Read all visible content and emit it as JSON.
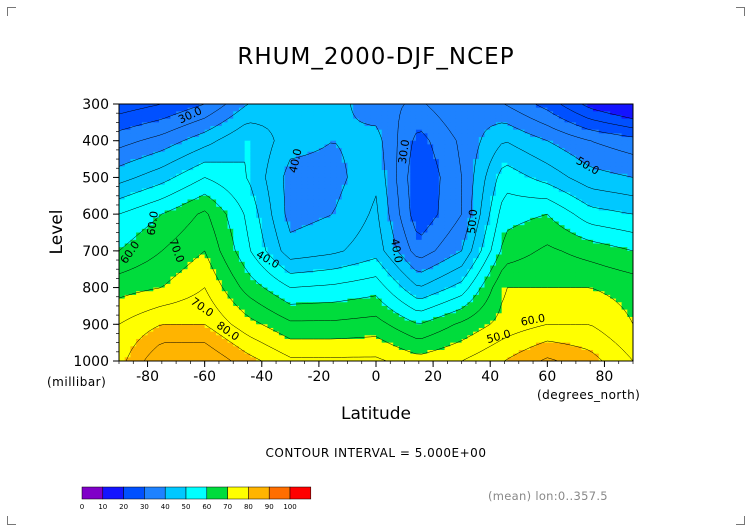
{
  "title": "RHUM_2000-DJF_NCEP",
  "contour_interval_text": "CONTOUR INTERVAL = 5.000E+00",
  "mean_text": "(mean) lon:0..357.5",
  "colorbar": {
    "levels": [
      "0",
      "10",
      "20",
      "30",
      "40",
      "50",
      "60",
      "70",
      "80",
      "90",
      "100"
    ],
    "colors": [
      "#8000c8",
      "#1414ff",
      "#0050ff",
      "#1e82ff",
      "#00c8ff",
      "#00ffff",
      "#00dc3c",
      "#ffff00",
      "#ffb400",
      "#ff6e00",
      "#ff0000"
    ]
  },
  "chart_data": {
    "type": "heatmap",
    "title": "RHUM_2000-DJF_NCEP",
    "xlabel": "Latitude",
    "x_unit": "(degrees_north)",
    "ylabel": "Level",
    "y_unit": "(millibar)",
    "xlim": [
      -90,
      90
    ],
    "ylim": [
      1000,
      300
    ],
    "xticks": [
      -80,
      -60,
      -40,
      -20,
      0,
      20,
      40,
      60,
      80
    ],
    "yticks": [
      300,
      400,
      500,
      600,
      700,
      800,
      900,
      1000
    ],
    "contour_interval": 5.0,
    "contour_labels": [
      "30.0",
      "40.0",
      "30.0",
      "40.0",
      "40.0",
      "50.0",
      "60.0",
      "70.0",
      "60.0",
      "50.0",
      "50.0",
      "60.0",
      "70.0",
      "80.0"
    ],
    "levels": [
      300,
      400,
      500,
      600,
      700,
      800,
      900,
      1000
    ],
    "latitudes": [
      -90,
      -75,
      -60,
      -45,
      -30,
      -15,
      0,
      15,
      30,
      45,
      60,
      75,
      90
    ],
    "values": [
      [
        22,
        25,
        30,
        40,
        45,
        42,
        37,
        34,
        40,
        35,
        28,
        18,
        12
      ],
      [
        33,
        37,
        43,
        50,
        42,
        40,
        42,
        28,
        36,
        45,
        40,
        35,
        32
      ],
      [
        43,
        48,
        55,
        50,
        38,
        38,
        44,
        25,
        35,
        53,
        48,
        42,
        40
      ],
      [
        55,
        60,
        66,
        54,
        38,
        40,
        46,
        26,
        35,
        58,
        60,
        52,
        50
      ],
      [
        60,
        65,
        70,
        56,
        42,
        44,
        48,
        32,
        40,
        62,
        66,
        63,
        60
      ],
      [
        68,
        70,
        75,
        63,
        55,
        56,
        58,
        45,
        52,
        70,
        70,
        70,
        68
      ],
      [
        75,
        80,
        80,
        72,
        66,
        66,
        67,
        60,
        66,
        72,
        75,
        75,
        70
      ],
      [
        78,
        90,
        90,
        82,
        76,
        76,
        76,
        72,
        75,
        80,
        86,
        82,
        75
      ]
    ]
  }
}
